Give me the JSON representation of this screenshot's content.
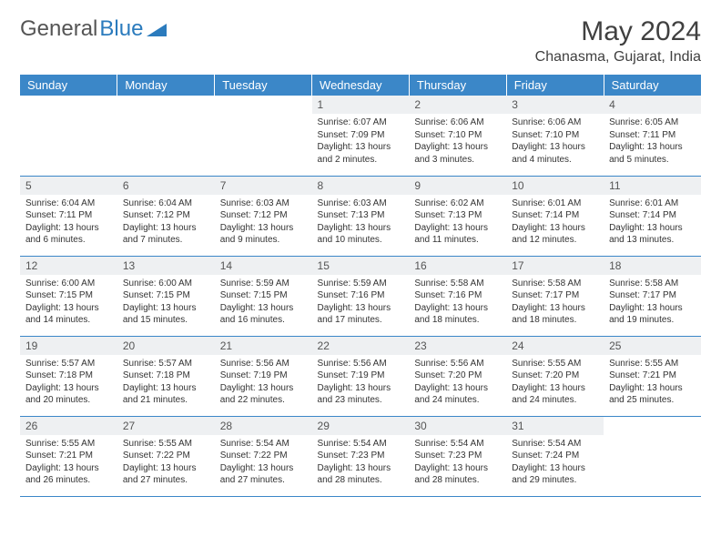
{
  "brand": {
    "name1": "General",
    "name2": "Blue"
  },
  "title": "May 2024",
  "location": "Chanasma, Gujarat, India",
  "header_bg": "#3b87c8",
  "weekdays": [
    "Sunday",
    "Monday",
    "Tuesday",
    "Wednesday",
    "Thursday",
    "Friday",
    "Saturday"
  ],
  "weeks": [
    [
      null,
      null,
      null,
      {
        "n": "1",
        "sr": "Sunrise: 6:07 AM",
        "ss": "Sunset: 7:09 PM",
        "dl": "Daylight: 13 hours and 2 minutes."
      },
      {
        "n": "2",
        "sr": "Sunrise: 6:06 AM",
        "ss": "Sunset: 7:10 PM",
        "dl": "Daylight: 13 hours and 3 minutes."
      },
      {
        "n": "3",
        "sr": "Sunrise: 6:06 AM",
        "ss": "Sunset: 7:10 PM",
        "dl": "Daylight: 13 hours and 4 minutes."
      },
      {
        "n": "4",
        "sr": "Sunrise: 6:05 AM",
        "ss": "Sunset: 7:11 PM",
        "dl": "Daylight: 13 hours and 5 minutes."
      }
    ],
    [
      {
        "n": "5",
        "sr": "Sunrise: 6:04 AM",
        "ss": "Sunset: 7:11 PM",
        "dl": "Daylight: 13 hours and 6 minutes."
      },
      {
        "n": "6",
        "sr": "Sunrise: 6:04 AM",
        "ss": "Sunset: 7:12 PM",
        "dl": "Daylight: 13 hours and 7 minutes."
      },
      {
        "n": "7",
        "sr": "Sunrise: 6:03 AM",
        "ss": "Sunset: 7:12 PM",
        "dl": "Daylight: 13 hours and 9 minutes."
      },
      {
        "n": "8",
        "sr": "Sunrise: 6:03 AM",
        "ss": "Sunset: 7:13 PM",
        "dl": "Daylight: 13 hours and 10 minutes."
      },
      {
        "n": "9",
        "sr": "Sunrise: 6:02 AM",
        "ss": "Sunset: 7:13 PM",
        "dl": "Daylight: 13 hours and 11 minutes."
      },
      {
        "n": "10",
        "sr": "Sunrise: 6:01 AM",
        "ss": "Sunset: 7:14 PM",
        "dl": "Daylight: 13 hours and 12 minutes."
      },
      {
        "n": "11",
        "sr": "Sunrise: 6:01 AM",
        "ss": "Sunset: 7:14 PM",
        "dl": "Daylight: 13 hours and 13 minutes."
      }
    ],
    [
      {
        "n": "12",
        "sr": "Sunrise: 6:00 AM",
        "ss": "Sunset: 7:15 PM",
        "dl": "Daylight: 13 hours and 14 minutes."
      },
      {
        "n": "13",
        "sr": "Sunrise: 6:00 AM",
        "ss": "Sunset: 7:15 PM",
        "dl": "Daylight: 13 hours and 15 minutes."
      },
      {
        "n": "14",
        "sr": "Sunrise: 5:59 AM",
        "ss": "Sunset: 7:15 PM",
        "dl": "Daylight: 13 hours and 16 minutes."
      },
      {
        "n": "15",
        "sr": "Sunrise: 5:59 AM",
        "ss": "Sunset: 7:16 PM",
        "dl": "Daylight: 13 hours and 17 minutes."
      },
      {
        "n": "16",
        "sr": "Sunrise: 5:58 AM",
        "ss": "Sunset: 7:16 PM",
        "dl": "Daylight: 13 hours and 18 minutes."
      },
      {
        "n": "17",
        "sr": "Sunrise: 5:58 AM",
        "ss": "Sunset: 7:17 PM",
        "dl": "Daylight: 13 hours and 18 minutes."
      },
      {
        "n": "18",
        "sr": "Sunrise: 5:58 AM",
        "ss": "Sunset: 7:17 PM",
        "dl": "Daylight: 13 hours and 19 minutes."
      }
    ],
    [
      {
        "n": "19",
        "sr": "Sunrise: 5:57 AM",
        "ss": "Sunset: 7:18 PM",
        "dl": "Daylight: 13 hours and 20 minutes."
      },
      {
        "n": "20",
        "sr": "Sunrise: 5:57 AM",
        "ss": "Sunset: 7:18 PM",
        "dl": "Daylight: 13 hours and 21 minutes."
      },
      {
        "n": "21",
        "sr": "Sunrise: 5:56 AM",
        "ss": "Sunset: 7:19 PM",
        "dl": "Daylight: 13 hours and 22 minutes."
      },
      {
        "n": "22",
        "sr": "Sunrise: 5:56 AM",
        "ss": "Sunset: 7:19 PM",
        "dl": "Daylight: 13 hours and 23 minutes."
      },
      {
        "n": "23",
        "sr": "Sunrise: 5:56 AM",
        "ss": "Sunset: 7:20 PM",
        "dl": "Daylight: 13 hours and 24 minutes."
      },
      {
        "n": "24",
        "sr": "Sunrise: 5:55 AM",
        "ss": "Sunset: 7:20 PM",
        "dl": "Daylight: 13 hours and 24 minutes."
      },
      {
        "n": "25",
        "sr": "Sunrise: 5:55 AM",
        "ss": "Sunset: 7:21 PM",
        "dl": "Daylight: 13 hours and 25 minutes."
      }
    ],
    [
      {
        "n": "26",
        "sr": "Sunrise: 5:55 AM",
        "ss": "Sunset: 7:21 PM",
        "dl": "Daylight: 13 hours and 26 minutes."
      },
      {
        "n": "27",
        "sr": "Sunrise: 5:55 AM",
        "ss": "Sunset: 7:22 PM",
        "dl": "Daylight: 13 hours and 27 minutes."
      },
      {
        "n": "28",
        "sr": "Sunrise: 5:54 AM",
        "ss": "Sunset: 7:22 PM",
        "dl": "Daylight: 13 hours and 27 minutes."
      },
      {
        "n": "29",
        "sr": "Sunrise: 5:54 AM",
        "ss": "Sunset: 7:23 PM",
        "dl": "Daylight: 13 hours and 28 minutes."
      },
      {
        "n": "30",
        "sr": "Sunrise: 5:54 AM",
        "ss": "Sunset: 7:23 PM",
        "dl": "Daylight: 13 hours and 28 minutes."
      },
      {
        "n": "31",
        "sr": "Sunrise: 5:54 AM",
        "ss": "Sunset: 7:24 PM",
        "dl": "Daylight: 13 hours and 29 minutes."
      },
      null
    ]
  ]
}
